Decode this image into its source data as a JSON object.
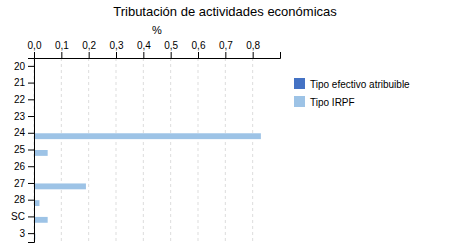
{
  "chart_data": {
    "type": "bar",
    "orientation": "horizontal",
    "title": "Tributación de actividades económicas",
    "x_label": "%",
    "categories": [
      "20",
      "21",
      "22",
      "23",
      "24",
      "25",
      "26",
      "27",
      "28",
      "SC",
      "3"
    ],
    "series": [
      {
        "name": "Tipo efectivo atribuible",
        "color": "#4472C4",
        "values": [
          0,
          0,
          0,
          0,
          0,
          0,
          0,
          0,
          0,
          0,
          0
        ]
      },
      {
        "name": "Tipo IRPF",
        "color": "#9DC3E6",
        "values": [
          0,
          0,
          0,
          0,
          0.83,
          0.05,
          0,
          0.19,
          0.02,
          0.05,
          0.005
        ]
      }
    ],
    "xlim": [
      0,
      0.9
    ],
    "xticks": [
      {
        "value": 0.0,
        "label": "0,0"
      },
      {
        "value": 0.1,
        "label": "0,1"
      },
      {
        "value": 0.2,
        "label": "0,2"
      },
      {
        "value": 0.3,
        "label": "0,3"
      },
      {
        "value": 0.4,
        "label": "0,4"
      },
      {
        "value": 0.5,
        "label": "0,5"
      },
      {
        "value": 0.6,
        "label": "0,6"
      },
      {
        "value": 0.7,
        "label": "0,7"
      },
      {
        "value": 0.8,
        "label": "0,8"
      }
    ],
    "grid": true,
    "legend": "right"
  }
}
